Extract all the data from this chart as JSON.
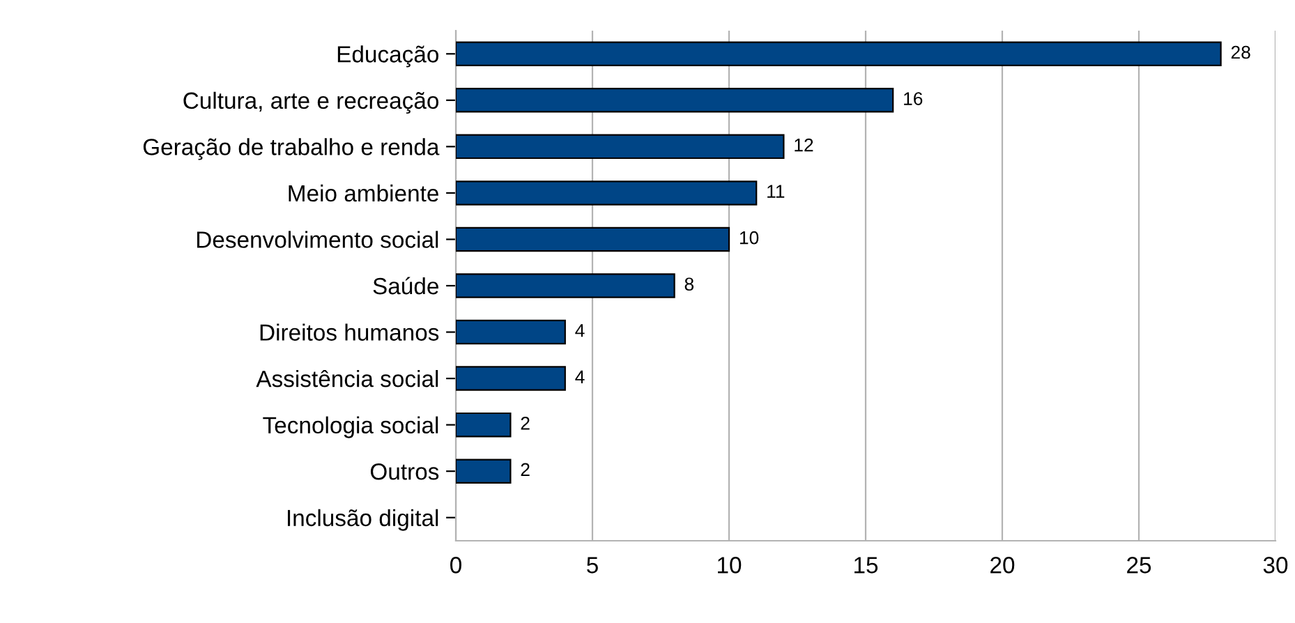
{
  "chart_data": {
    "type": "bar",
    "orientation": "horizontal",
    "categories": [
      "Educação",
      "Cultura, arte e recreação",
      "Geração de trabalho e renda",
      "Meio ambiente",
      "Desenvolvimento social",
      "Saúde",
      "Direitos humanos",
      "Assistência social",
      "Tecnologia social",
      "Outros",
      "Inclusão digital"
    ],
    "values": [
      28,
      16,
      12,
      11,
      10,
      8,
      4,
      4,
      2,
      2,
      0
    ],
    "value_labels": [
      "28",
      "16",
      "12",
      "11",
      "10",
      "8",
      "4",
      "4",
      "2",
      "2",
      null
    ],
    "color": "#004586",
    "xlim": [
      0,
      30
    ],
    "xticks": [
      0,
      5,
      10,
      15,
      20,
      25,
      30
    ],
    "grid": "x"
  }
}
